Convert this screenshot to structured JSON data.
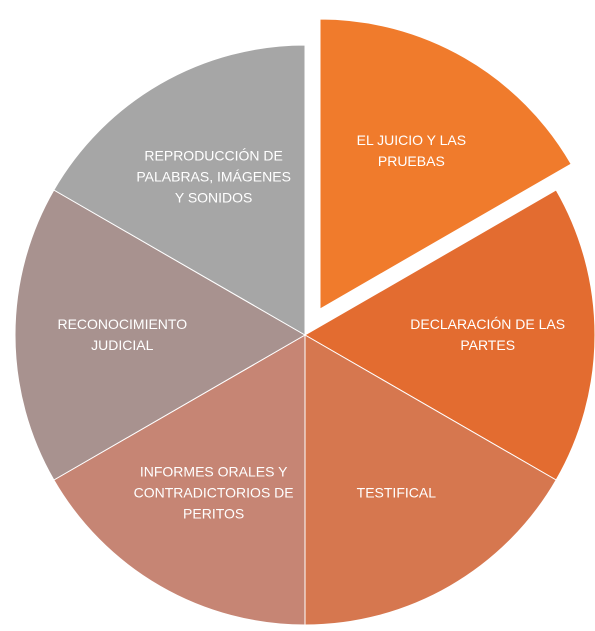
{
  "chart_data": {
    "type": "pie",
    "categories": [
      "EL  JUICIO Y LAS PRUEBAS",
      "DECLARACIÓN DE LAS PARTES",
      "TESTIFICAL",
      "INFORMES ORALES Y CONTRADICTORIOS DE PERITOS",
      "RECONOCIMIENTO JUDICIAL",
      "REPRODUCCIÓN DE PALABRAS, IMÁGENES Y SONIDOS"
    ],
    "values": [
      1,
      1,
      1,
      1,
      1,
      1
    ],
    "colors": [
      "#f07b2c",
      "#e36c30",
      "#d6774f",
      "#c68574",
      "#a8928f",
      "#a6a6a6"
    ],
    "exploded": [
      0
    ]
  }
}
